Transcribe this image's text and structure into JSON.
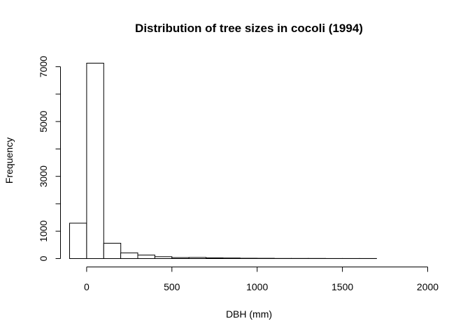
{
  "chart_data": {
    "type": "bar",
    "title": "Distribution of tree sizes in cocoli (1994)",
    "xlabel": "DBH (mm)",
    "ylabel": "Frequency",
    "bin_width": 100,
    "bins": [
      {
        "x0": -100,
        "x1": 0,
        "value": 1290
      },
      {
        "x0": 0,
        "x1": 100,
        "value": 7130
      },
      {
        "x0": 100,
        "x1": 200,
        "value": 560
      },
      {
        "x0": 200,
        "x1": 300,
        "value": 210
      },
      {
        "x0": 300,
        "x1": 400,
        "value": 130
      },
      {
        "x0": 400,
        "x1": 500,
        "value": 70
      },
      {
        "x0": 500,
        "x1": 600,
        "value": 35
      },
      {
        "x0": 600,
        "x1": 700,
        "value": 40
      },
      {
        "x0": 700,
        "x1": 800,
        "value": 25
      },
      {
        "x0": 800,
        "x1": 900,
        "value": 20
      },
      {
        "x0": 900,
        "x1": 1000,
        "value": 12
      },
      {
        "x0": 1000,
        "x1": 1100,
        "value": 10
      },
      {
        "x0": 1100,
        "x1": 1200,
        "value": 6
      },
      {
        "x0": 1200,
        "x1": 1300,
        "value": 5
      },
      {
        "x0": 1300,
        "x1": 1400,
        "value": 4
      },
      {
        "x0": 1400,
        "x1": 1500,
        "value": 3
      },
      {
        "x0": 1500,
        "x1": 1600,
        "value": 2
      },
      {
        "x0": 1600,
        "x1": 1700,
        "value": 2
      },
      {
        "x0": 1700,
        "x1": 1800,
        "value": 1
      },
      {
        "x0": 1800,
        "x1": 1900,
        "value": 1
      },
      {
        "x0": 1900,
        "x1": 2000,
        "value": 1
      }
    ],
    "xlim": [
      -100,
      2000
    ],
    "ylim": [
      0,
      7130
    ],
    "x_ticks": [
      0,
      500,
      1000,
      1500,
      2000
    ],
    "x_tick_labels": [
      "0",
      "500",
      "1000",
      "1500",
      "2000"
    ],
    "y_ticks": [
      0,
      1000,
      2000,
      3000,
      4000,
      5000,
      6000,
      7000
    ],
    "y_tick_labels": [
      "0",
      "1000",
      "",
      "3000",
      "",
      "5000",
      "",
      "7000"
    ],
    "grid": false,
    "legend": "none"
  }
}
